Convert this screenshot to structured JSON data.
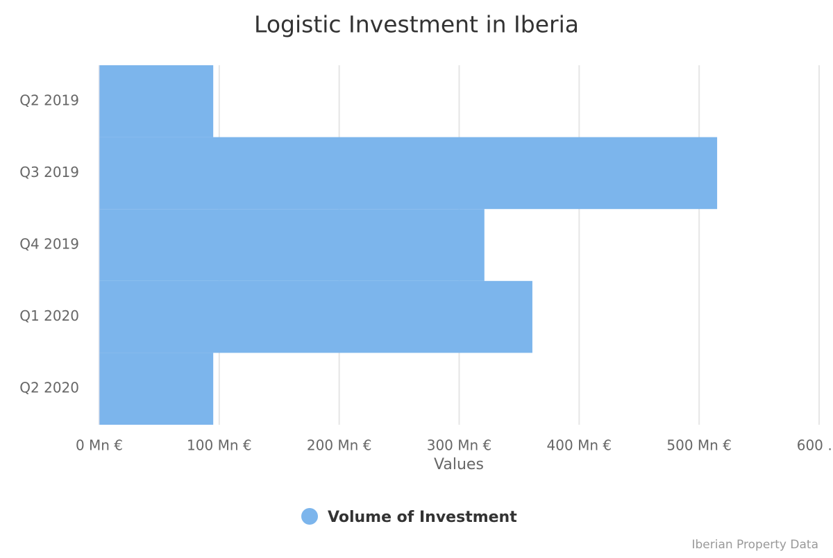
{
  "chart_data": {
    "type": "bar",
    "orientation": "horizontal",
    "title": "Logistic Investment in Iberia",
    "x_label": "Values",
    "categories": [
      "Q2 2019",
      "Q3 2019",
      "Q4 2019",
      "Q1 2020",
      "Q2 2020"
    ],
    "series": [
      {
        "name": "Volume of Investment",
        "color": "#7cb5ec",
        "values": [
          95,
          515,
          321,
          361,
          95
        ]
      }
    ],
    "xlim": [
      0,
      600
    ],
    "xticks": [
      {
        "value": 0,
        "label": "0 Mn €"
      },
      {
        "value": 100,
        "label": "100 Mn €"
      },
      {
        "value": 200,
        "label": "200 Mn €"
      },
      {
        "value": 300,
        "label": "300 Mn €"
      },
      {
        "value": 400,
        "label": "400 Mn €"
      },
      {
        "value": 500,
        "label": "500 Mn €"
      },
      {
        "value": 600,
        "label": "600 …"
      }
    ],
    "grid": true,
    "legend": "bottom",
    "credits": "Iberian Property Data"
  }
}
